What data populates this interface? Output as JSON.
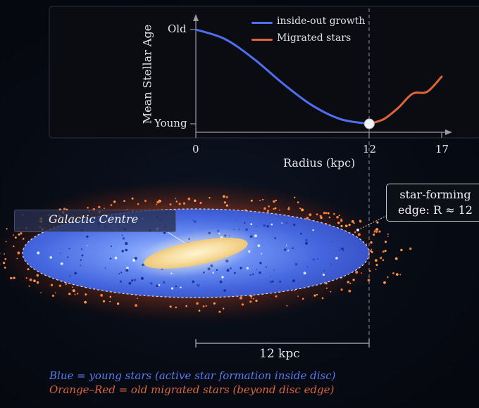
{
  "chart_data": {
    "type": "line",
    "ylabel": "Mean Stellar Age",
    "xlabel": "Radius (kpc)",
    "y_ticks": [
      "Old",
      "Young"
    ],
    "x_ticks": [
      "0",
      "12",
      "17"
    ],
    "xlim": [
      0,
      17
    ],
    "legend_position": "top-right",
    "series": [
      {
        "name": "inside-out growth",
        "color": "#4f6ff0",
        "x": [
          0,
          2,
          4,
          6,
          8,
          10,
          12
        ],
        "age": [
          1.0,
          0.9,
          0.69,
          0.43,
          0.2,
          0.05,
          0.0
        ]
      },
      {
        "name": "Migrated stars",
        "color": "#e0643a",
        "x": [
          12,
          13,
          14,
          15,
          16,
          17
        ],
        "age": [
          0.0,
          0.05,
          0.17,
          0.32,
          0.34,
          0.5
        ]
      }
    ],
    "marker_x": 12
  },
  "diagram": {
    "galactic_centre_label": "Galactic Centre",
    "callout_line1": "star-forming",
    "callout_line2": "edge: R ≈ 12",
    "scale_label": "12 kpc",
    "caption_blue": "Blue = young stars (active star formation inside disc)",
    "caption_orange": "Orange–Red = old migrated stars (beyond disc edge)"
  },
  "colors": {
    "young_blue": "#4f6ff0",
    "migrated_orange": "#e0643a",
    "caption_blue": "#5b7cf0",
    "caption_orange": "#e0643a"
  }
}
